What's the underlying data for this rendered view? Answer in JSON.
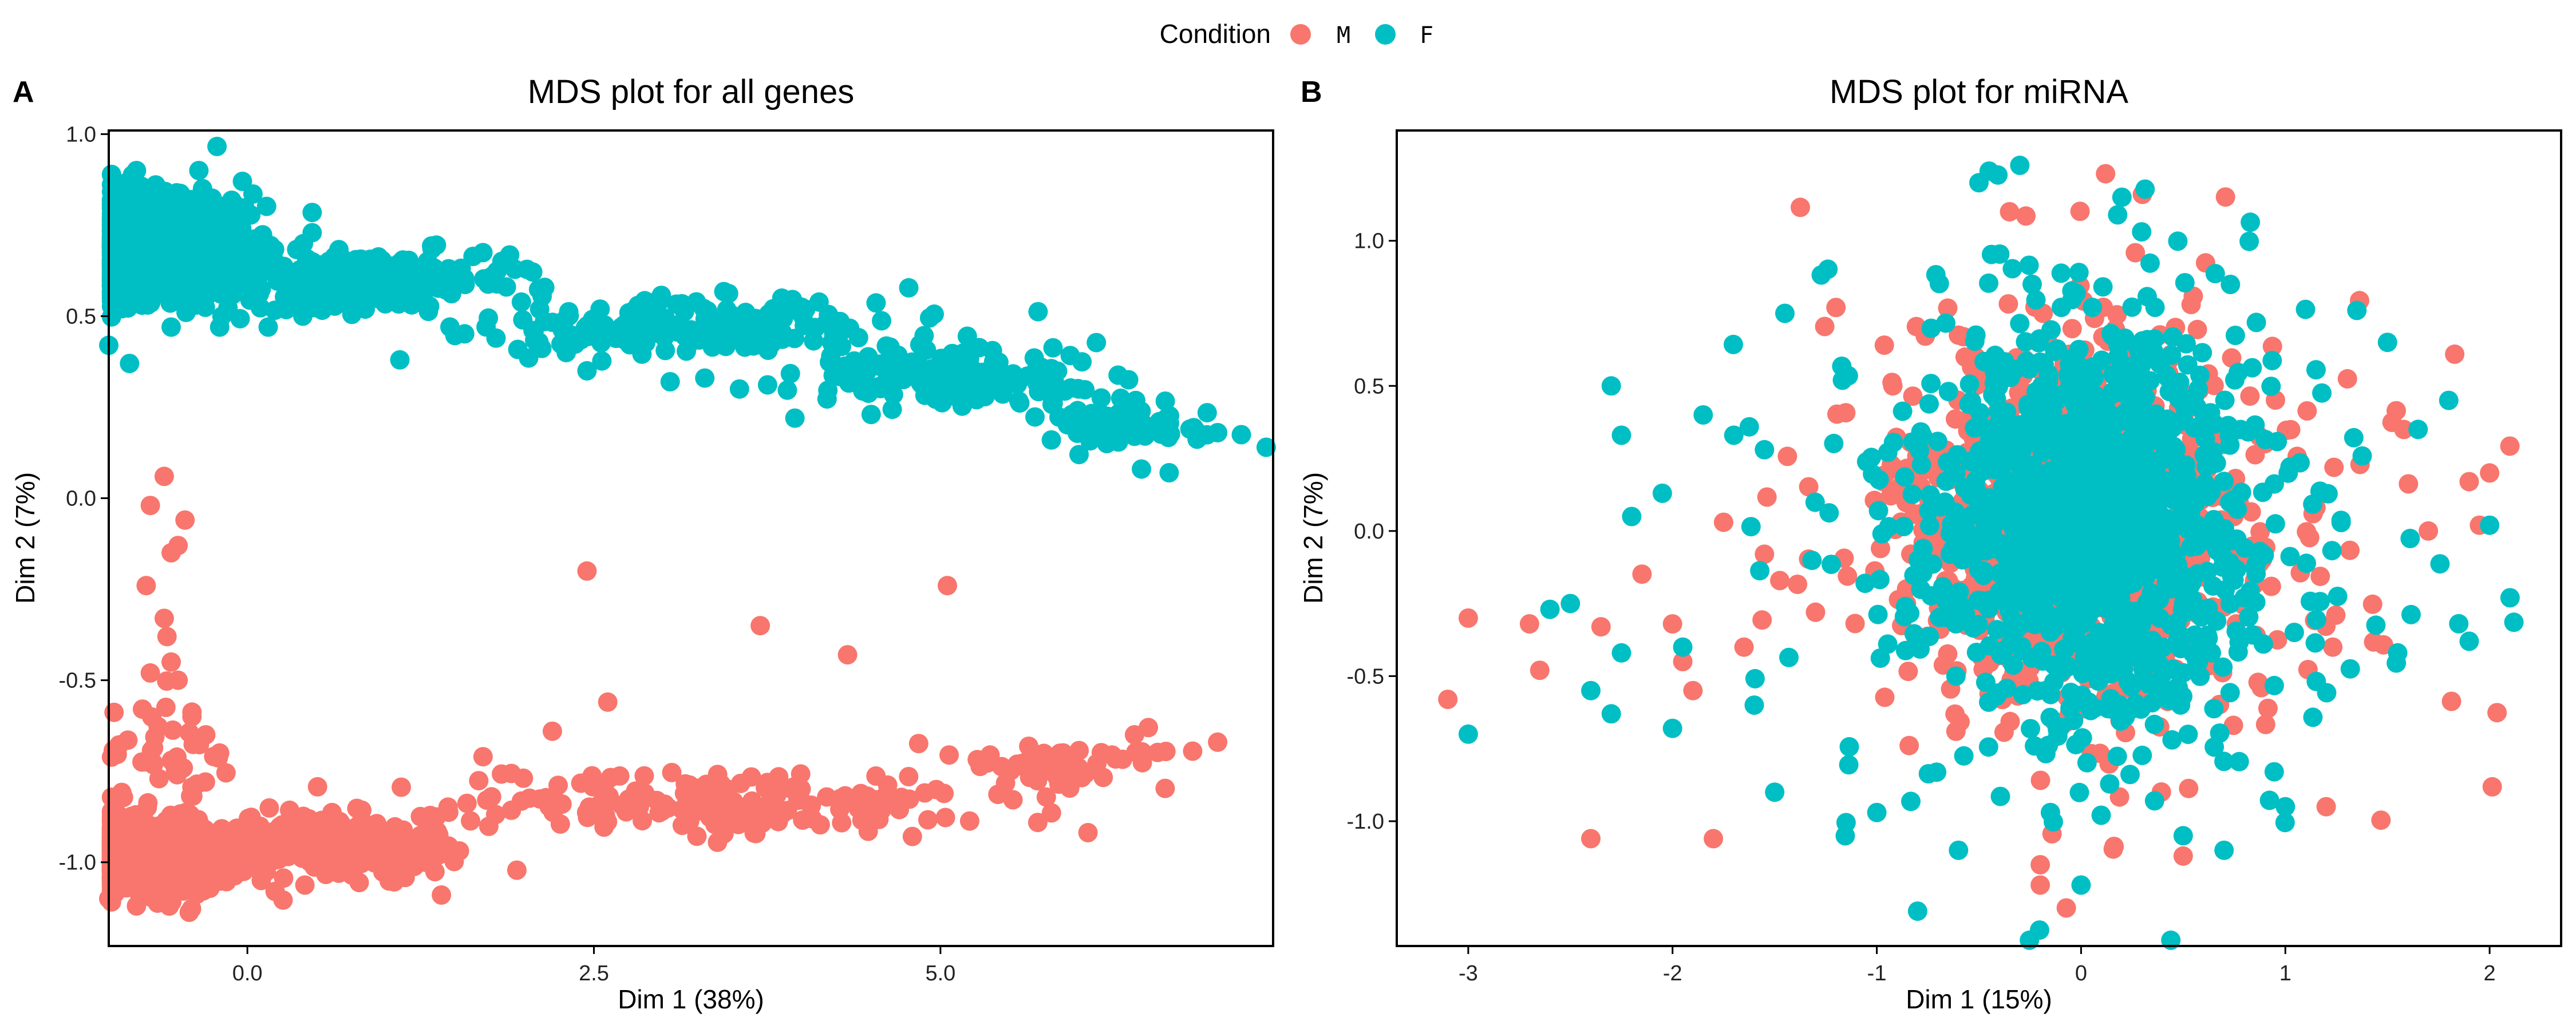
{
  "legend": {
    "title": "Condition",
    "items": [
      {
        "label": "M",
        "color": "#F8766D"
      },
      {
        "label": "F",
        "color": "#00BFC4"
      }
    ]
  },
  "chart_data": [
    {
      "type": "scatter",
      "panel_tag": "A",
      "title": "MDS plot for all genes",
      "xlabel": "Dim 1 (38%)",
      "ylabel": "Dim 2 (7%)",
      "xlim": [
        -1.0,
        7.4
      ],
      "ylim": [
        -1.23,
        1.01
      ],
      "xticks": [
        {
          "value": 0.0,
          "label": "0.0"
        },
        {
          "value": 2.5,
          "label": "2.5"
        },
        {
          "value": 5.0,
          "label": "5.0"
        }
      ],
      "yticks": [
        {
          "value": 1.0,
          "label": "1.0"
        },
        {
          "value": 0.5,
          "label": "0.5"
        },
        {
          "value": 0.0,
          "label": "0.0"
        },
        {
          "value": -0.5,
          "label": "-0.5"
        },
        {
          "value": -1.0,
          "label": "-1.0"
        }
      ],
      "series": [
        {
          "name": "M",
          "color": "#F8766D",
          "clusters": [
            {
              "n": 900,
              "center": [
                -0.75,
                -0.98
              ],
              "spread": [
                0.3,
                0.05
              ]
            },
            {
              "n": 280,
              "center": [
                0.6,
                -0.95
              ],
              "spread": [
                0.45,
                0.04
              ]
            },
            {
              "n": 170,
              "center": [
                3.4,
                -0.84
              ],
              "spread": [
                1.05,
                0.04
              ]
            },
            {
              "n": 60,
              "center": [
                5.8,
                -0.73
              ],
              "spread": [
                0.45,
                0.03
              ]
            },
            {
              "n": 40,
              "center": [
                -0.6,
                -0.7
              ],
              "spread": [
                0.2,
                0.08
              ]
            }
          ],
          "points": [
            [
              -0.6,
              0.06
            ],
            [
              -0.7,
              -0.02
            ],
            [
              -0.45,
              -0.06
            ],
            [
              -0.5,
              -0.13
            ],
            [
              -0.55,
              -0.15
            ],
            [
              -0.73,
              -0.24
            ],
            [
              -0.6,
              -0.33
            ],
            [
              -0.58,
              -0.38
            ],
            [
              -0.55,
              -0.45
            ],
            [
              -0.7,
              -0.48
            ],
            [
              -0.5,
              -0.5
            ],
            [
              -0.4,
              -0.6
            ],
            [
              -0.3,
              -0.65
            ],
            [
              -0.2,
              -0.7
            ],
            [
              2.45,
              -0.2
            ],
            [
              5.05,
              -0.24
            ],
            [
              3.7,
              -0.35
            ],
            [
              4.33,
              -0.43
            ],
            [
              2.6,
              -0.56
            ],
            [
              2.2,
              -0.64
            ],
            [
              1.7,
              -0.71
            ],
            [
              1.4,
              -1.09
            ],
            [
              6.5,
              -0.63
            ],
            [
              6.4,
              -0.65
            ],
            [
              7.0,
              -0.67
            ],
            [
              0.1,
              -1.05
            ],
            [
              -1.0,
              -1.1
            ],
            [
              -0.8,
              -1.12
            ],
            [
              0.2,
              -1.08
            ]
          ]
        },
        {
          "name": "F",
          "color": "#00BFC4",
          "clusters": [
            {
              "n": 1100,
              "center": [
                -0.65,
                0.69
              ],
              "spread": [
                0.33,
                0.07
              ]
            },
            {
              "n": 250,
              "center": [
                0.9,
                0.6
              ],
              "spread": [
                0.5,
                0.04
              ]
            },
            {
              "n": 200,
              "center": [
                3.2,
                0.47
              ],
              "spread": [
                0.9,
                0.04
              ]
            },
            {
              "n": 150,
              "center": [
                5.1,
                0.34
              ],
              "spread": [
                0.55,
                0.04
              ]
            },
            {
              "n": 70,
              "center": [
                6.3,
                0.2
              ],
              "spread": [
                0.3,
                0.03
              ]
            }
          ],
          "points": [
            [
              -0.8,
              0.9
            ],
            [
              -0.35,
              0.9
            ],
            [
              -0.45,
              0.82
            ],
            [
              -0.85,
              0.37
            ],
            [
              -1.0,
              0.42
            ],
            [
              -0.55,
              0.47
            ],
            [
              -0.2,
              0.47
            ],
            [
              0.15,
              0.47
            ],
            [
              0.4,
              0.5
            ],
            [
              0.75,
              0.53
            ],
            [
              1.1,
              0.38
            ],
            [
              2.3,
              0.4
            ],
            [
              2.45,
              0.35
            ],
            [
              3.05,
              0.32
            ],
            [
              3.3,
              0.33
            ],
            [
              3.55,
              0.3
            ],
            [
              3.95,
              0.22
            ],
            [
              4.5,
              0.23
            ],
            [
              5.15,
              0.31
            ],
            [
              5.8,
              0.16
            ],
            [
              6.0,
              0.12
            ],
            [
              6.2,
              0.15
            ],
            [
              6.4,
              0.17
            ],
            [
              6.6,
              0.18
            ],
            [
              6.45,
              0.08
            ],
            [
              6.8,
              0.19
            ],
            [
              7.0,
              0.18
            ],
            [
              7.35,
              0.14
            ],
            [
              6.65,
              0.07
            ]
          ]
        }
      ]
    },
    {
      "type": "scatter",
      "panel_tag": "B",
      "title": "MDS plot for miRNA",
      "xlabel": "Dim 1 (15%)",
      "ylabel": "Dim 2 (7%)",
      "xlim": [
        -3.35,
        2.35
      ],
      "ylim": [
        -1.43,
        1.38
      ],
      "xticks": [
        {
          "value": -3,
          "label": "-3"
        },
        {
          "value": -2,
          "label": "-2"
        },
        {
          "value": -1,
          "label": "-1"
        },
        {
          "value": 0,
          "label": "0"
        },
        {
          "value": 1,
          "label": "1"
        },
        {
          "value": 2,
          "label": "2"
        }
      ],
      "yticks": [
        {
          "value": 1.0,
          "label": "1.0"
        },
        {
          "value": 0.5,
          "label": "0.5"
        },
        {
          "value": 0.0,
          "label": "0.0"
        },
        {
          "value": -0.5,
          "label": "-0.5"
        },
        {
          "value": -1.0,
          "label": "-1.0"
        }
      ],
      "series": [
        {
          "name": "M",
          "color": "#F8766D",
          "clusters": [
            {
              "n": 900,
              "center": [
                0.0,
                0.0
              ],
              "spread": [
                0.38,
                0.3
              ]
            },
            {
              "n": 220,
              "center": [
                0.0,
                0.0
              ],
              "spread": [
                0.75,
                0.45
              ]
            }
          ],
          "points": [
            [
              -3.1,
              -0.58
            ],
            [
              -3.0,
              -0.3
            ],
            [
              -2.7,
              -0.32
            ],
            [
              -2.65,
              -0.48
            ],
            [
              -2.4,
              -1.06
            ],
            [
              -2.35,
              -0.33
            ],
            [
              -2.0,
              -0.32
            ],
            [
              -1.95,
              -0.45
            ],
            [
              -1.8,
              -1.06
            ],
            [
              -1.75,
              0.03
            ],
            [
              -1.9,
              -0.55
            ],
            [
              -1.65,
              -0.4
            ],
            [
              -1.55,
              -0.08
            ],
            [
              -1.3,
              -0.28
            ],
            [
              -1.2,
              0.77
            ],
            [
              1.7,
              0.0
            ],
            [
              1.9,
              0.17
            ],
            [
              2.0,
              0.2
            ],
            [
              1.95,
              0.02
            ],
            [
              1.2,
              -0.95
            ],
            [
              0.3,
              1.16
            ],
            [
              -0.35,
              1.1
            ],
            [
              0.5,
              -1.12
            ],
            [
              -0.2,
              -1.15
            ],
            [
              -0.2,
              -1.22
            ]
          ]
        },
        {
          "name": "F",
          "color": "#00BFC4",
          "clusters": [
            {
              "n": 1000,
              "center": [
                0.05,
                0.05
              ],
              "spread": [
                0.4,
                0.32
              ]
            },
            {
              "n": 260,
              "center": [
                0.05,
                0.0
              ],
              "spread": [
                0.75,
                0.48
              ]
            }
          ],
          "points": [
            [
              -3.0,
              -0.7
            ],
            [
              -2.6,
              -0.27
            ],
            [
              -2.3,
              0.5
            ],
            [
              -2.25,
              0.33
            ],
            [
              -2.2,
              0.05
            ],
            [
              -2.25,
              -0.42
            ],
            [
              -2.3,
              -0.63
            ],
            [
              -2.4,
              -0.55
            ],
            [
              -2.5,
              -0.25
            ],
            [
              -2.05,
              0.13
            ],
            [
              -1.85,
              0.4
            ],
            [
              -1.7,
              0.33
            ],
            [
              -1.55,
              0.28
            ],
            [
              -1.45,
              0.75
            ],
            [
              -1.5,
              -0.9
            ],
            [
              -1.6,
              -0.6
            ],
            [
              -2.0,
              -0.68
            ],
            [
              -1.95,
              -0.4
            ],
            [
              2.1,
              -0.23
            ],
            [
              2.0,
              0.02
            ],
            [
              1.8,
              0.45
            ],
            [
              1.65,
              0.35
            ],
            [
              1.55,
              -0.42
            ],
            [
              1.9,
              -0.38
            ],
            [
              1.5,
              0.65
            ],
            [
              1.35,
              0.76
            ],
            [
              -0.3,
              1.26
            ],
            [
              -0.45,
              1.24
            ],
            [
              -0.5,
              1.2
            ],
            [
              0.2,
              1.15
            ],
            [
              -0.8,
              -1.31
            ],
            [
              0.0,
              -1.22
            ],
            [
              -0.6,
              -1.1
            ],
            [
              0.5,
              -1.05
            ],
            [
              0.7,
              -1.1
            ],
            [
              1.0,
              -0.95
            ],
            [
              -0.15,
              -0.97
            ],
            [
              -1.0,
              -0.97
            ]
          ]
        }
      ]
    }
  ]
}
